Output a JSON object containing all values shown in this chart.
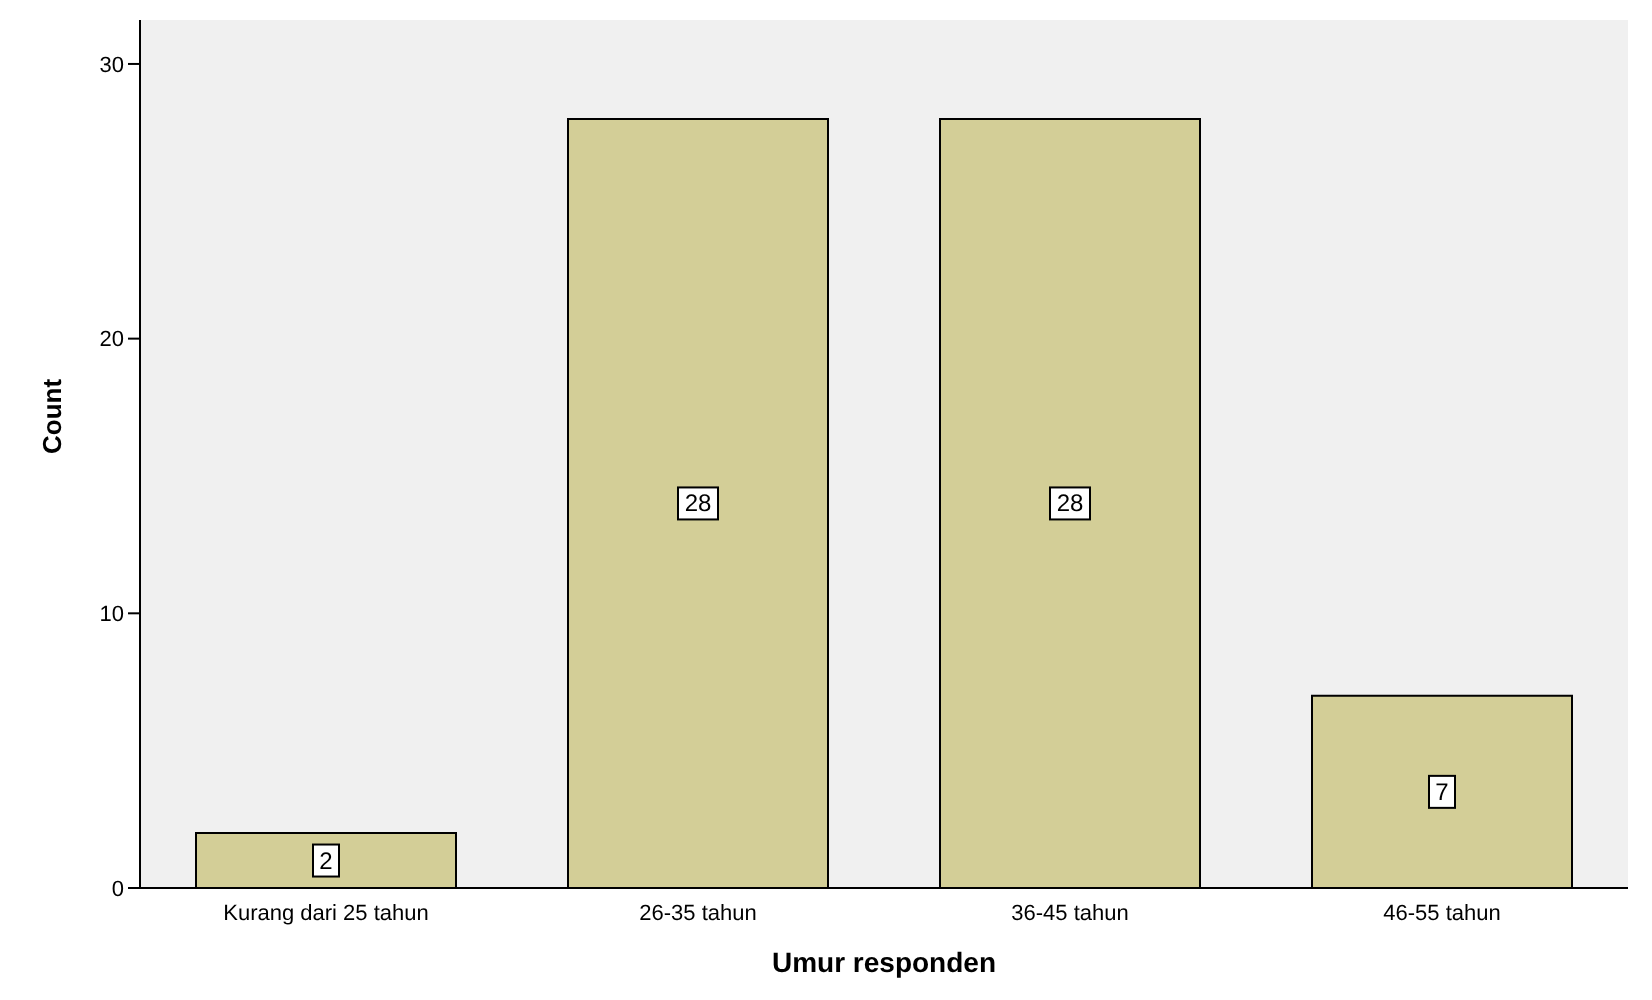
{
  "chart_data": {
    "type": "bar",
    "xlabel": "Umur responden",
    "ylabel": "Count",
    "categories": [
      "Kurang dari 25 tahun",
      "26-35 tahun",
      "36-45 tahun",
      "46-55 tahun"
    ],
    "values": [
      2,
      28,
      28,
      7
    ],
    "color": "#d3ce97",
    "ylim": [
      0,
      31.6
    ],
    "yticks": [
      0,
      10,
      20,
      30
    ],
    "data_labels": true
  }
}
